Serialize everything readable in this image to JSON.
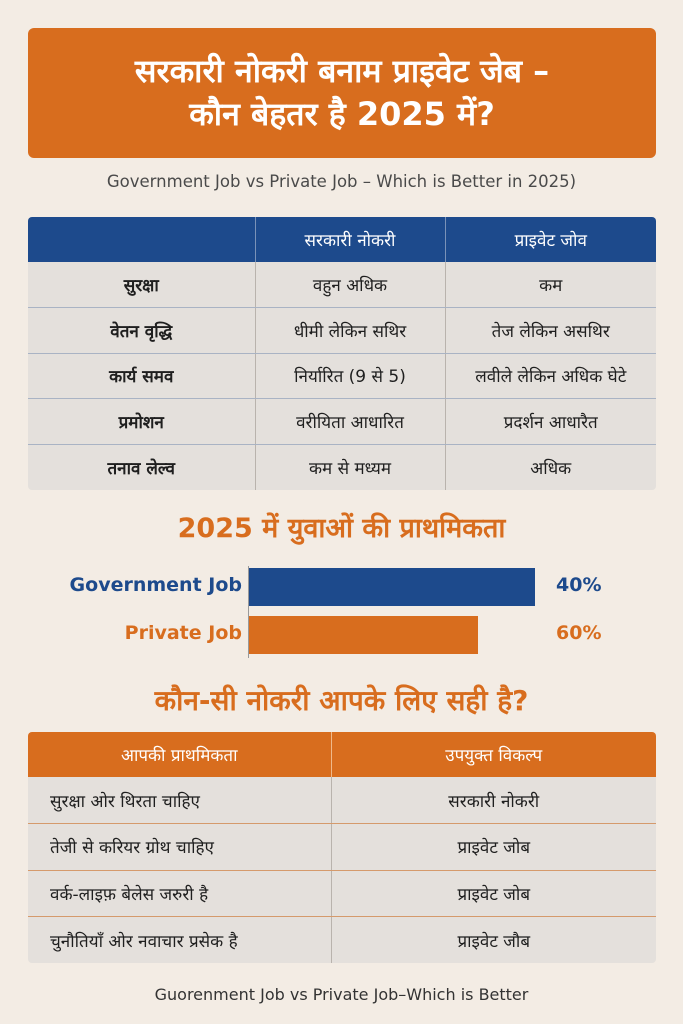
{
  "header": {
    "title_line1": "सरकारी नोकरी बनाम प्राइवेट जेब –",
    "title_line2": "कौन बेहतर है 2025 में?",
    "subtitle": "Government Job vs Private Job – Which is Better in 2025)"
  },
  "comparison": {
    "columns": [
      "",
      "सरकारी नोकरी",
      "प्राइवेट जोव"
    ],
    "rows": [
      [
        "सुरक्षा",
        "वहुन अधिक",
        "कम"
      ],
      [
        "वेतन वृद्धि",
        "धीमी लेकिन सथिर",
        "तेज लेकिन असथिर"
      ],
      [
        "कार्य समव",
        "निर्यारित (9 से 5)",
        "लवीले लेकिन अधिक घेटे"
      ],
      [
        "प्रमोशन",
        "वरीयिता आधारित",
        "प्रदर्शन आधारैत"
      ],
      [
        "तनाव लेल्व",
        "कम से मध्यम",
        "अधिक"
      ]
    ]
  },
  "chart_data": {
    "type": "bar",
    "title": "2025 में युवाओं की प्राथमिकता",
    "categories": [
      "Government Job",
      "Private Job"
    ],
    "values": [
      40,
      60
    ],
    "value_labels": [
      "40%",
      "60%"
    ],
    "colors": [
      "#1d4a8c",
      "#d86d1e"
    ]
  },
  "preferences": {
    "title": "कौन-सी नोकरी आपके लिए सही है?",
    "columns": [
      "आपकी प्राथमिकता",
      "उपयुक्त विकल्प"
    ],
    "rows": [
      [
        "सुरक्षा ओर थिरता चाहिए",
        "सरकारी नोकरी"
      ],
      [
        "तेजी से करियर ग्रोथ चाहिए",
        "प्राइवेट जोब"
      ],
      [
        "वर्क-लाइफ़ बेलेस जरुरी है",
        "प्राइवेट जोब"
      ],
      [
        "चुनौतियाँ ओर नवाचार प्रसेक है",
        "प्राइवेट जौब"
      ]
    ]
  },
  "footer": {
    "text": "Guorenment Job vs Private Job–Which is Better"
  },
  "colors": {
    "orange": "#d86d1e",
    "blue": "#1d4a8c",
    "background": "#f3ece4"
  }
}
